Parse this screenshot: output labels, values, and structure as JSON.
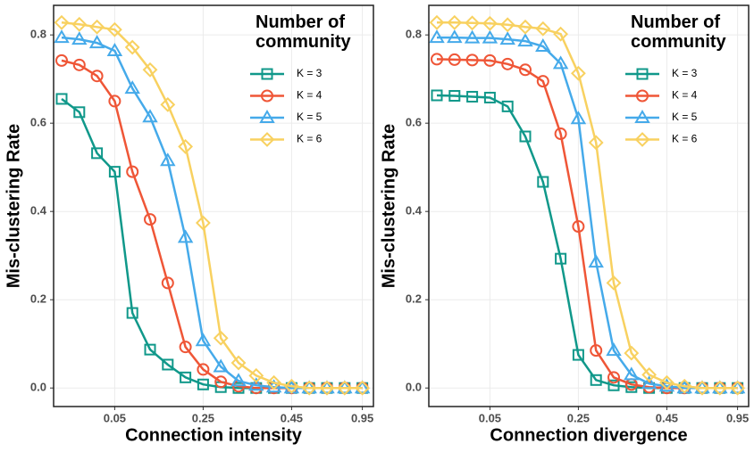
{
  "chart_data": [
    {
      "type": "line",
      "xlabel": "Connection intensity",
      "ylabel": "Mis-clustering Rate",
      "legend_title": "Number of community",
      "legend": "top-right",
      "grid": true,
      "categories": [
        null,
        null,
        null,
        "0.05",
        null,
        null,
        null,
        null,
        "0.25",
        null,
        null,
        null,
        null,
        "0.45",
        null,
        null,
        null,
        "0.95"
      ],
      "ylim": [
        -0.042,
        0.867
      ],
      "yticks": [
        {
          "value": 0,
          "label": "0.0"
        },
        0.2,
        0.4,
        0.6,
        0.8
      ],
      "series": [
        {
          "name": "K = 3",
          "color": "#10988a",
          "marker": "square",
          "values": [
            0.655,
            0.625,
            0.532,
            0.49,
            0.17,
            0.087,
            0.053,
            0.024,
            0.008,
            0.002,
            0,
            0,
            0,
            0,
            0,
            0,
            0,
            0
          ]
        },
        {
          "name": "K = 4",
          "color": "#ef5637",
          "marker": "circle",
          "values": [
            0.742,
            0.732,
            0.707,
            0.65,
            0.49,
            0.382,
            0.238,
            0.093,
            0.042,
            0.014,
            0.004,
            0,
            0,
            0,
            0,
            0,
            0,
            0
          ]
        },
        {
          "name": "K = 5",
          "color": "#45aaea",
          "marker": "triangle",
          "values": [
            0.794,
            0.79,
            0.782,
            0.764,
            0.679,
            0.614,
            0.515,
            0.341,
            0.107,
            0.048,
            0.016,
            0.006,
            0.002,
            0,
            0,
            0,
            0,
            0
          ]
        },
        {
          "name": "K = 6",
          "color": "#f8d160",
          "marker": "diamond",
          "values": [
            0.828,
            0.824,
            0.818,
            0.812,
            0.772,
            0.721,
            0.642,
            0.547,
            0.374,
            0.113,
            0.057,
            0.028,
            0.012,
            0.004,
            0,
            0,
            0,
            0
          ]
        }
      ]
    },
    {
      "type": "line",
      "xlabel": "Connection divergence",
      "ylabel": "Mis-clustering Rate",
      "legend_title": "Number of community",
      "legend": "top-right",
      "grid": true,
      "categories": [
        null,
        null,
        null,
        "0.05",
        null,
        null,
        null,
        null,
        "0.25",
        null,
        null,
        null,
        null,
        "0.45",
        null,
        null,
        null,
        "0.95"
      ],
      "ylim": [
        -0.042,
        0.867
      ],
      "yticks": [
        {
          "value": 0,
          "label": "0.0"
        },
        0.2,
        0.4,
        0.6,
        0.8
      ],
      "series": [
        {
          "name": "K = 3",
          "color": "#10988a",
          "marker": "square",
          "values": [
            0.663,
            0.662,
            0.66,
            0.658,
            0.638,
            0.57,
            0.467,
            0.293,
            0.075,
            0.018,
            0.006,
            0.002,
            0,
            0,
            0,
            0,
            0,
            0
          ]
        },
        {
          "name": "K = 4",
          "color": "#ef5637",
          "marker": "circle",
          "values": [
            0.745,
            0.744,
            0.743,
            0.742,
            0.734,
            0.721,
            0.695,
            0.576,
            0.366,
            0.085,
            0.024,
            0.008,
            0.002,
            0,
            0,
            0,
            0,
            0
          ]
        },
        {
          "name": "K = 5",
          "color": "#45aaea",
          "marker": "triangle",
          "values": [
            0.794,
            0.794,
            0.793,
            0.793,
            0.79,
            0.786,
            0.774,
            0.735,
            0.61,
            0.285,
            0.085,
            0.03,
            0.01,
            0.004,
            0,
            0,
            0,
            0
          ]
        },
        {
          "name": "K = 6",
          "color": "#f8d160",
          "marker": "diamond",
          "values": [
            0.828,
            0.828,
            0.827,
            0.826,
            0.823,
            0.818,
            0.814,
            0.802,
            0.713,
            0.556,
            0.238,
            0.079,
            0.03,
            0.012,
            0.004,
            0,
            0,
            0
          ]
        }
      ]
    }
  ]
}
